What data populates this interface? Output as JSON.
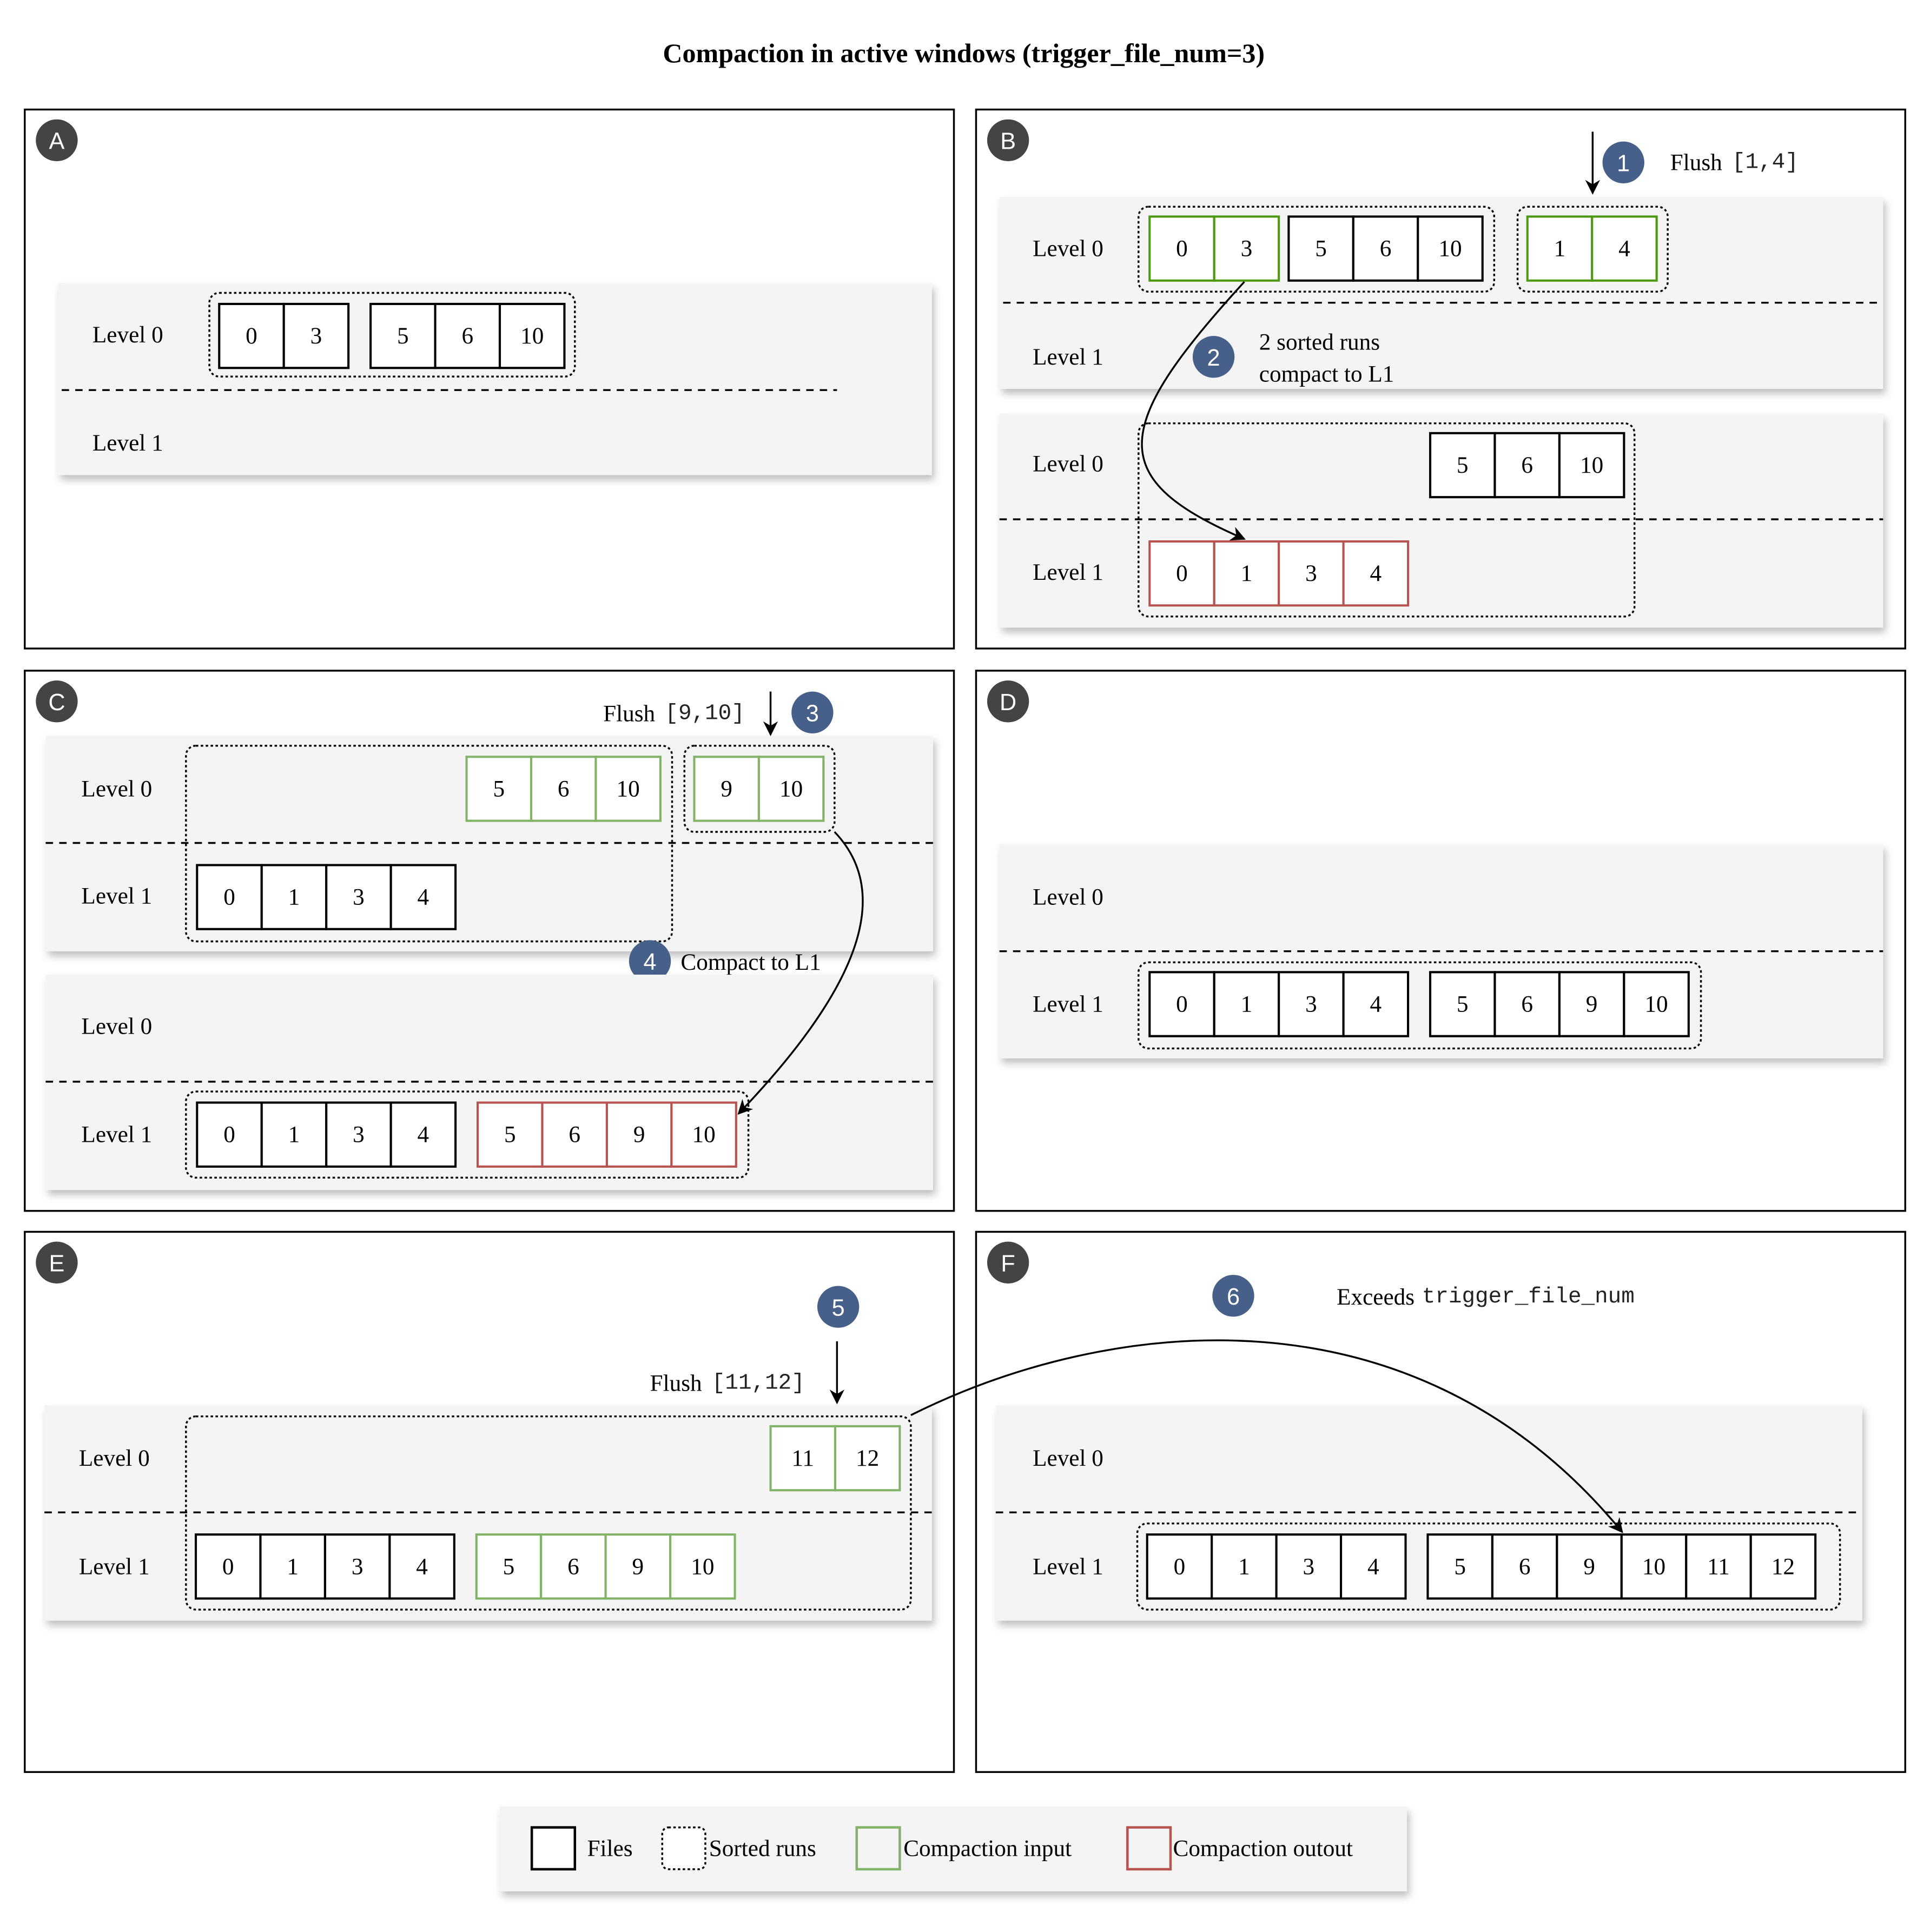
{
  "title": "Compaction in active windows (trigger_file_num=3)",
  "labels": {
    "level0": "Level 0",
    "level1": "Level 1"
  },
  "colors": {
    "file": "#000000",
    "input_dark": "#4d9a12",
    "input": "#82b366",
    "output": "#b85450",
    "band": "#f4f4f4",
    "step_badge": "#46608a",
    "panel_badge": "#444444"
  },
  "panels": {
    "A": {
      "badge": "A",
      "l0": [
        [
          "0",
          "3"
        ],
        [
          "5",
          "6",
          "10"
        ]
      ]
    },
    "B": {
      "badge": "B",
      "step1": "1",
      "flush": "Flush",
      "flush_range": "[1,4]",
      "step2": "2",
      "note_line1": "2 sorted runs",
      "note_line2": "compact to L1",
      "before_l0_input": [
        "0",
        "3"
      ],
      "before_l0_other": [
        "5",
        "6",
        "10"
      ],
      "before_l0_flushed": [
        "1",
        "4"
      ],
      "after_l0": [
        "5",
        "6",
        "10"
      ],
      "after_l1_output": [
        "0",
        "1",
        "3",
        "4"
      ]
    },
    "C": {
      "badge": "C",
      "step3": "3",
      "flush": "Flush",
      "flush_range": "[9,10]",
      "step4": "4",
      "note": "Compact to L1",
      "before_l0_input": [
        "5",
        "6",
        "10"
      ],
      "before_l0_flushed": [
        "9",
        "10"
      ],
      "before_l1": [
        "0",
        "1",
        "3",
        "4"
      ],
      "after_l1": [
        "0",
        "1",
        "3",
        "4"
      ],
      "after_l1_output": [
        "5",
        "6",
        "9",
        "10"
      ]
    },
    "D": {
      "badge": "D",
      "l1": [
        [
          "0",
          "1",
          "3",
          "4"
        ],
        [
          "5",
          "6",
          "9",
          "10"
        ]
      ]
    },
    "E": {
      "badge": "E",
      "step5": "5",
      "flush": "Flush",
      "flush_range": "[11,12]",
      "l0_flushed": [
        "11",
        "12"
      ],
      "l1": [
        "0",
        "1",
        "3",
        "4"
      ],
      "l1_input": [
        "5",
        "6",
        "9",
        "10"
      ]
    },
    "F": {
      "badge": "F",
      "step6": "6",
      "note": "Exceeds",
      "note_code": "trigger_file_num",
      "l1": [
        [
          "0",
          "1",
          "3",
          "4"
        ],
        [
          "5",
          "6",
          "9",
          "10",
          "11",
          "12"
        ]
      ]
    }
  },
  "legend": {
    "files": "Files",
    "sorted_runs": "Sorted runs",
    "compaction_input": "Compaction input",
    "compaction_output": "Compaction outout"
  }
}
